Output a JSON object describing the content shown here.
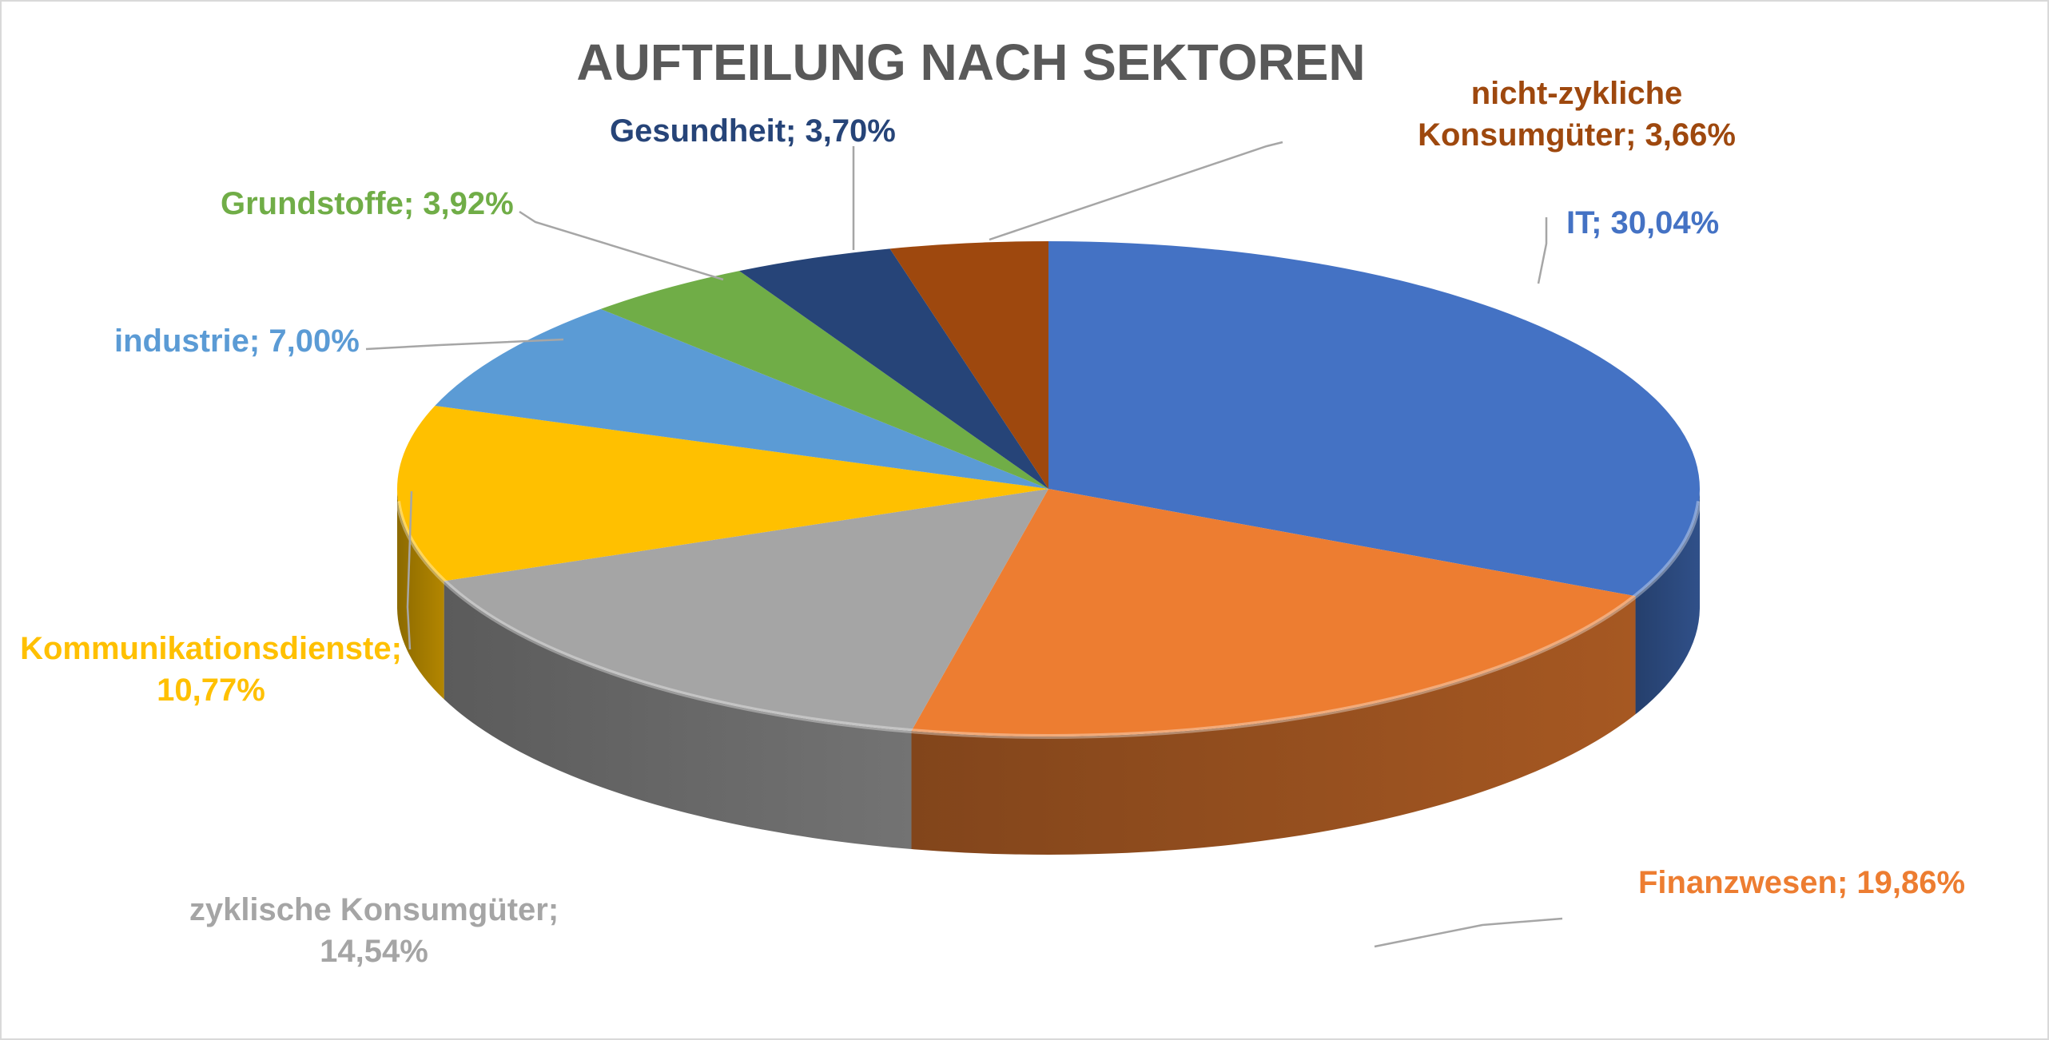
{
  "chart_data": {
    "type": "pie",
    "title": "AUFTEILUNG NACH SEKTOREN",
    "slices": [
      {
        "name": "IT",
        "value": 30.04,
        "value_label": "30,04%",
        "color": "#4472C4"
      },
      {
        "name": "Finanzwesen",
        "value": 19.86,
        "value_label": "19,86%",
        "color": "#ED7D31"
      },
      {
        "name": "zyklische Konsumgüter",
        "value": 14.54,
        "value_label": "14,54%",
        "color": "#A5A5A5"
      },
      {
        "name": "Kommunikationsdienste",
        "value": 10.77,
        "value_label": "10,77%",
        "color": "#FFC000"
      },
      {
        "name": "industrie",
        "value": 7.0,
        "value_label": "7,00%",
        "color": "#5B9BD5"
      },
      {
        "name": "Grundstoffe",
        "value": 3.92,
        "value_label": "3,92%",
        "color": "#70AD47"
      },
      {
        "name": "Gesundheit",
        "value": 3.7,
        "value_label": "3,70%",
        "color": "#264478"
      },
      {
        "name": "nicht-zykliche Konsumgüter",
        "value": 3.66,
        "value_label": "3,66%",
        "color": "#9E480E"
      }
    ],
    "labels": [
      [
        "IT; 30,04%"
      ],
      [
        "Finanzwesen; 19,86%"
      ],
      [
        "zyklische Konsumgüter;",
        "14,54%"
      ],
      [
        "Kommunikationsdienste;",
        "10,77%"
      ],
      [
        "industrie; 7,00%"
      ],
      [
        "Grundstoffe; 3,92%"
      ],
      [
        "Gesundheit; 3,70%"
      ],
      [
        "nicht-zykliche",
        "Konsumgüter; 3,66%"
      ]
    ],
    "style": "3d-pie"
  }
}
